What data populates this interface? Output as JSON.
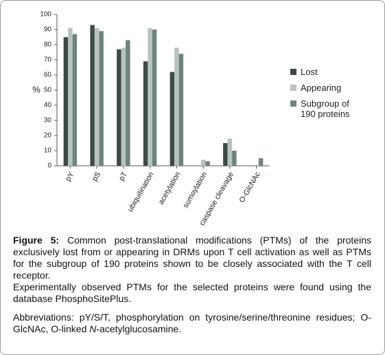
{
  "chart_data": {
    "type": "bar",
    "categories": [
      "pY",
      "pS",
      "pT",
      "ubiquitination",
      "acetylation",
      "sumoylation",
      "caspase cleavage",
      "O-GlcNAc"
    ],
    "series": [
      {
        "name": "Lost",
        "color": "#3e4a47",
        "values": [
          85,
          93,
          77,
          69,
          62,
          0,
          15,
          0
        ]
      },
      {
        "name": "Appearing",
        "color": "#b8c3bf",
        "values": [
          91,
          91,
          78,
          91,
          78,
          4,
          18,
          0
        ]
      },
      {
        "name": "Subgroup of 190 proteins",
        "color": "#6e837e",
        "values": [
          87,
          89,
          83,
          90,
          74,
          3,
          10,
          5
        ]
      }
    ],
    "ylabel": "%",
    "ylim": [
      0,
      100
    ],
    "yticks": [
      0,
      10,
      20,
      30,
      40,
      50,
      60,
      70,
      80,
      90,
      100
    ],
    "grid": false
  },
  "caption": {
    "label": "Figure 5:",
    "text": "Common post-translational modifications (PTMs) of the proteins exclusively lost from or appearing in DRMs upon T cell activation as well as PTMs for the subgroup of 190 proteins shown to be closely associated with the T cell receptor.",
    "text2": "Experimentally observed PTMs for the selected proteins were found using the database PhosphoSitePlus.",
    "abbreviations": [
      "Abbreviations: pY/S/T, phosphorylation on tyrosine/serine/threonine residues; O-GlcNAc, O-linked ",
      "N",
      "-acetylglucosamine."
    ]
  }
}
